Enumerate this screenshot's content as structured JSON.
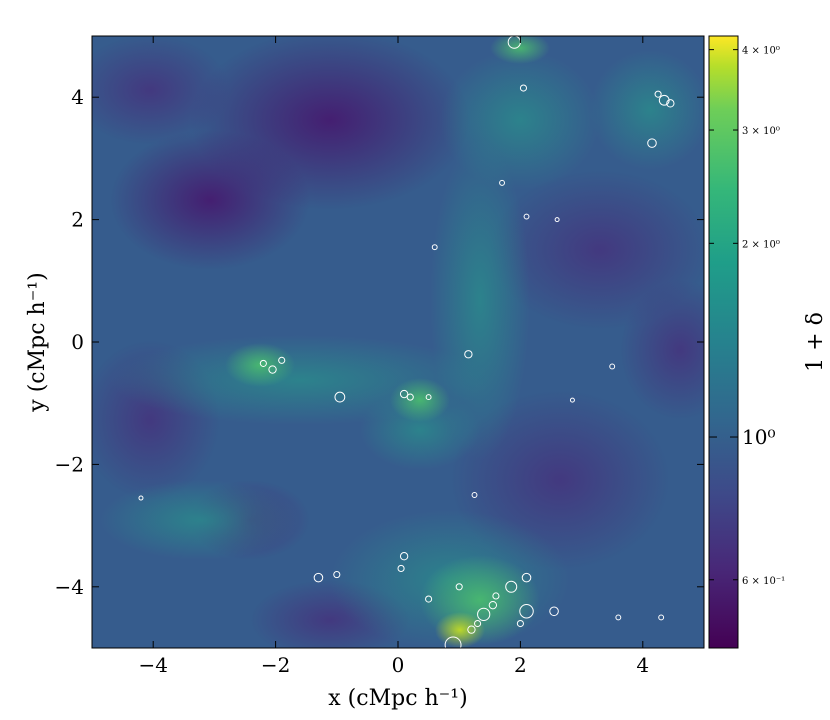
{
  "chart_data": {
    "type": "heatmap",
    "title": "",
    "xlabel": "x (cMpc h⁻¹)",
    "ylabel": "y (cMpc h⁻¹)",
    "xlim": [
      -5,
      5
    ],
    "ylim": [
      -5,
      5
    ],
    "xticks": [
      -4,
      -2,
      0,
      2,
      4
    ],
    "yticks": [
      -4,
      -2,
      0,
      2,
      4
    ],
    "xtick_labels": [
      "−4",
      "−2",
      "0",
      "2",
      "4"
    ],
    "ytick_labels": [
      "−4",
      "−2",
      "0",
      "2",
      "4"
    ],
    "colormap": "viridis",
    "colorbar": {
      "label": "1 + δ",
      "scale": "log",
      "range": [
        0.47,
        4.2
      ],
      "ticks": [
        {
          "value": 4,
          "label": "4 × 10⁰"
        },
        {
          "value": 3,
          "label": "3 × 10⁰"
        },
        {
          "value": 2,
          "label": "2 × 10⁰"
        },
        {
          "value": 1,
          "label": "10⁰"
        },
        {
          "value": 0.6,
          "label": "6 × 10⁻¹"
        }
      ]
    },
    "halos": [
      {
        "x": 1.9,
        "y": 4.9,
        "r": 0.1
      },
      {
        "x": 2.05,
        "y": 4.15,
        "r": 0.05
      },
      {
        "x": 4.25,
        "y": 4.05,
        "r": 0.05
      },
      {
        "x": 4.35,
        "y": 3.95,
        "r": 0.08
      },
      {
        "x": 4.45,
        "y": 3.9,
        "r": 0.06
      },
      {
        "x": 4.15,
        "y": 3.25,
        "r": 0.07
      },
      {
        "x": 1.7,
        "y": 2.6,
        "r": 0.04
      },
      {
        "x": 2.1,
        "y": 2.05,
        "r": 0.04
      },
      {
        "x": 2.6,
        "y": 2.0,
        "r": 0.03
      },
      {
        "x": 0.6,
        "y": 1.55,
        "r": 0.04
      },
      {
        "x": 1.15,
        "y": -0.2,
        "r": 0.06
      },
      {
        "x": 3.5,
        "y": -0.4,
        "r": 0.04
      },
      {
        "x": -2.2,
        "y": -0.35,
        "r": 0.05
      },
      {
        "x": -2.05,
        "y": -0.45,
        "r": 0.06
      },
      {
        "x": -1.9,
        "y": -0.3,
        "r": 0.05
      },
      {
        "x": -0.95,
        "y": -0.9,
        "r": 0.08
      },
      {
        "x": 0.1,
        "y": -0.85,
        "r": 0.06
      },
      {
        "x": 0.2,
        "y": -0.9,
        "r": 0.05
      },
      {
        "x": 0.5,
        "y": -0.9,
        "r": 0.04
      },
      {
        "x": 2.85,
        "y": -0.95,
        "r": 0.03
      },
      {
        "x": -4.2,
        "y": -2.55,
        "r": 0.03
      },
      {
        "x": 1.25,
        "y": -2.5,
        "r": 0.04
      },
      {
        "x": 0.1,
        "y": -3.5,
        "r": 0.06
      },
      {
        "x": -1.3,
        "y": -3.85,
        "r": 0.07
      },
      {
        "x": -1.0,
        "y": -3.8,
        "r": 0.05
      },
      {
        "x": 0.05,
        "y": -3.7,
        "r": 0.05
      },
      {
        "x": 1.0,
        "y": -4.0,
        "r": 0.05
      },
      {
        "x": 1.85,
        "y": -4.0,
        "r": 0.09
      },
      {
        "x": 2.1,
        "y": -3.85,
        "r": 0.07
      },
      {
        "x": 0.5,
        "y": -4.2,
        "r": 0.05
      },
      {
        "x": 1.6,
        "y": -4.15,
        "r": 0.05
      },
      {
        "x": 1.55,
        "y": -4.3,
        "r": 0.06
      },
      {
        "x": 1.4,
        "y": -4.45,
        "r": 0.1
      },
      {
        "x": 2.1,
        "y": -4.4,
        "r": 0.11
      },
      {
        "x": 2.55,
        "y": -4.4,
        "r": 0.07
      },
      {
        "x": 1.2,
        "y": -4.7,
        "r": 0.06
      },
      {
        "x": 1.3,
        "y": -4.6,
        "r": 0.05
      },
      {
        "x": 2.0,
        "y": -4.6,
        "r": 0.05
      },
      {
        "x": 0.9,
        "y": -4.95,
        "r": 0.13
      },
      {
        "x": 3.6,
        "y": -4.5,
        "r": 0.04
      },
      {
        "x": 4.3,
        "y": -4.5,
        "r": 0.04
      }
    ]
  }
}
